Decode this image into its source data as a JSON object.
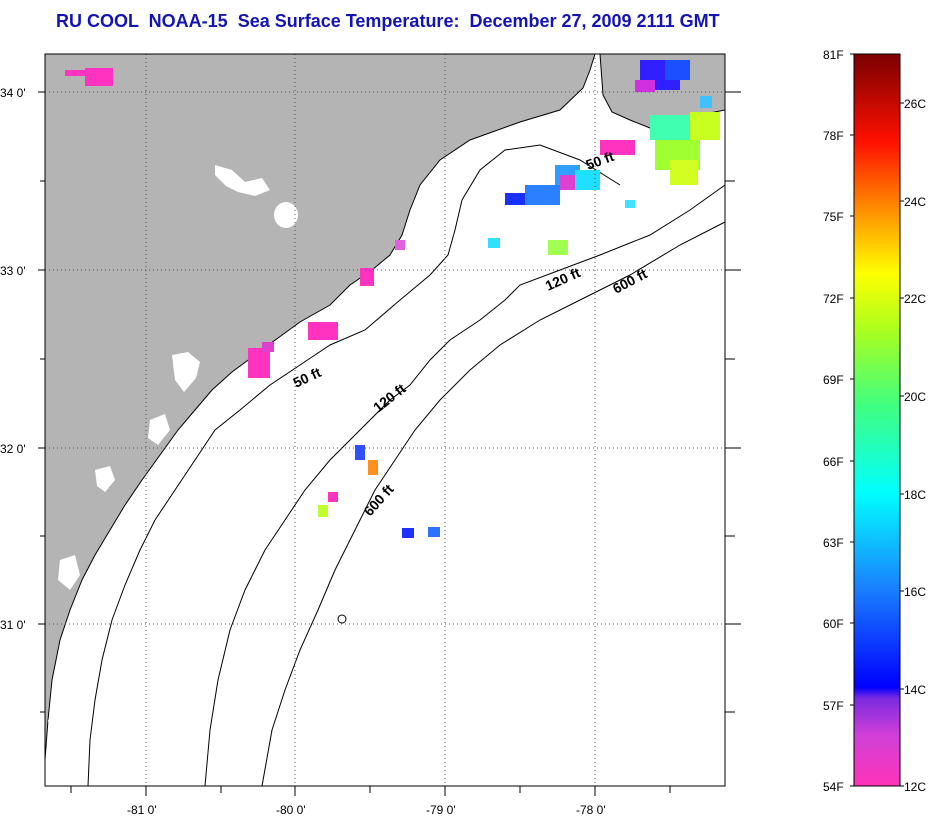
{
  "title": "RU COOL  NOAA-15  Sea Surface Temperature:  December 27, 2009 2111 GMT",
  "map": {
    "lon_labels": [
      "-81 0'",
      "-80 0'",
      "-79 0'",
      "-78 0'"
    ],
    "lat_labels": [
      "34 0'",
      "33 0'",
      "32 0'",
      "31 0'"
    ],
    "contours": [
      {
        "label": "50 ft"
      },
      {
        "label": "120 ft"
      },
      {
        "label": "600 ft"
      },
      {
        "label": "50 ft"
      },
      {
        "label": "120 ft"
      },
      {
        "label": "600 ft"
      }
    ],
    "colors": {
      "land": "#b4b4b4",
      "water": "#ffffff",
      "gridline": "#555555"
    }
  },
  "colorbar": {
    "fahrenheit_labels": [
      "81F",
      "78F",
      "75F",
      "72F",
      "69F",
      "66F",
      "63F",
      "60F",
      "57F",
      "54F"
    ],
    "celsius_labels": [
      "26C",
      "24C",
      "22C",
      "20C",
      "18C",
      "16C",
      "14C",
      "12C"
    ],
    "range_f": [
      54,
      81
    ],
    "range_c": [
      12,
      27
    ]
  }
}
